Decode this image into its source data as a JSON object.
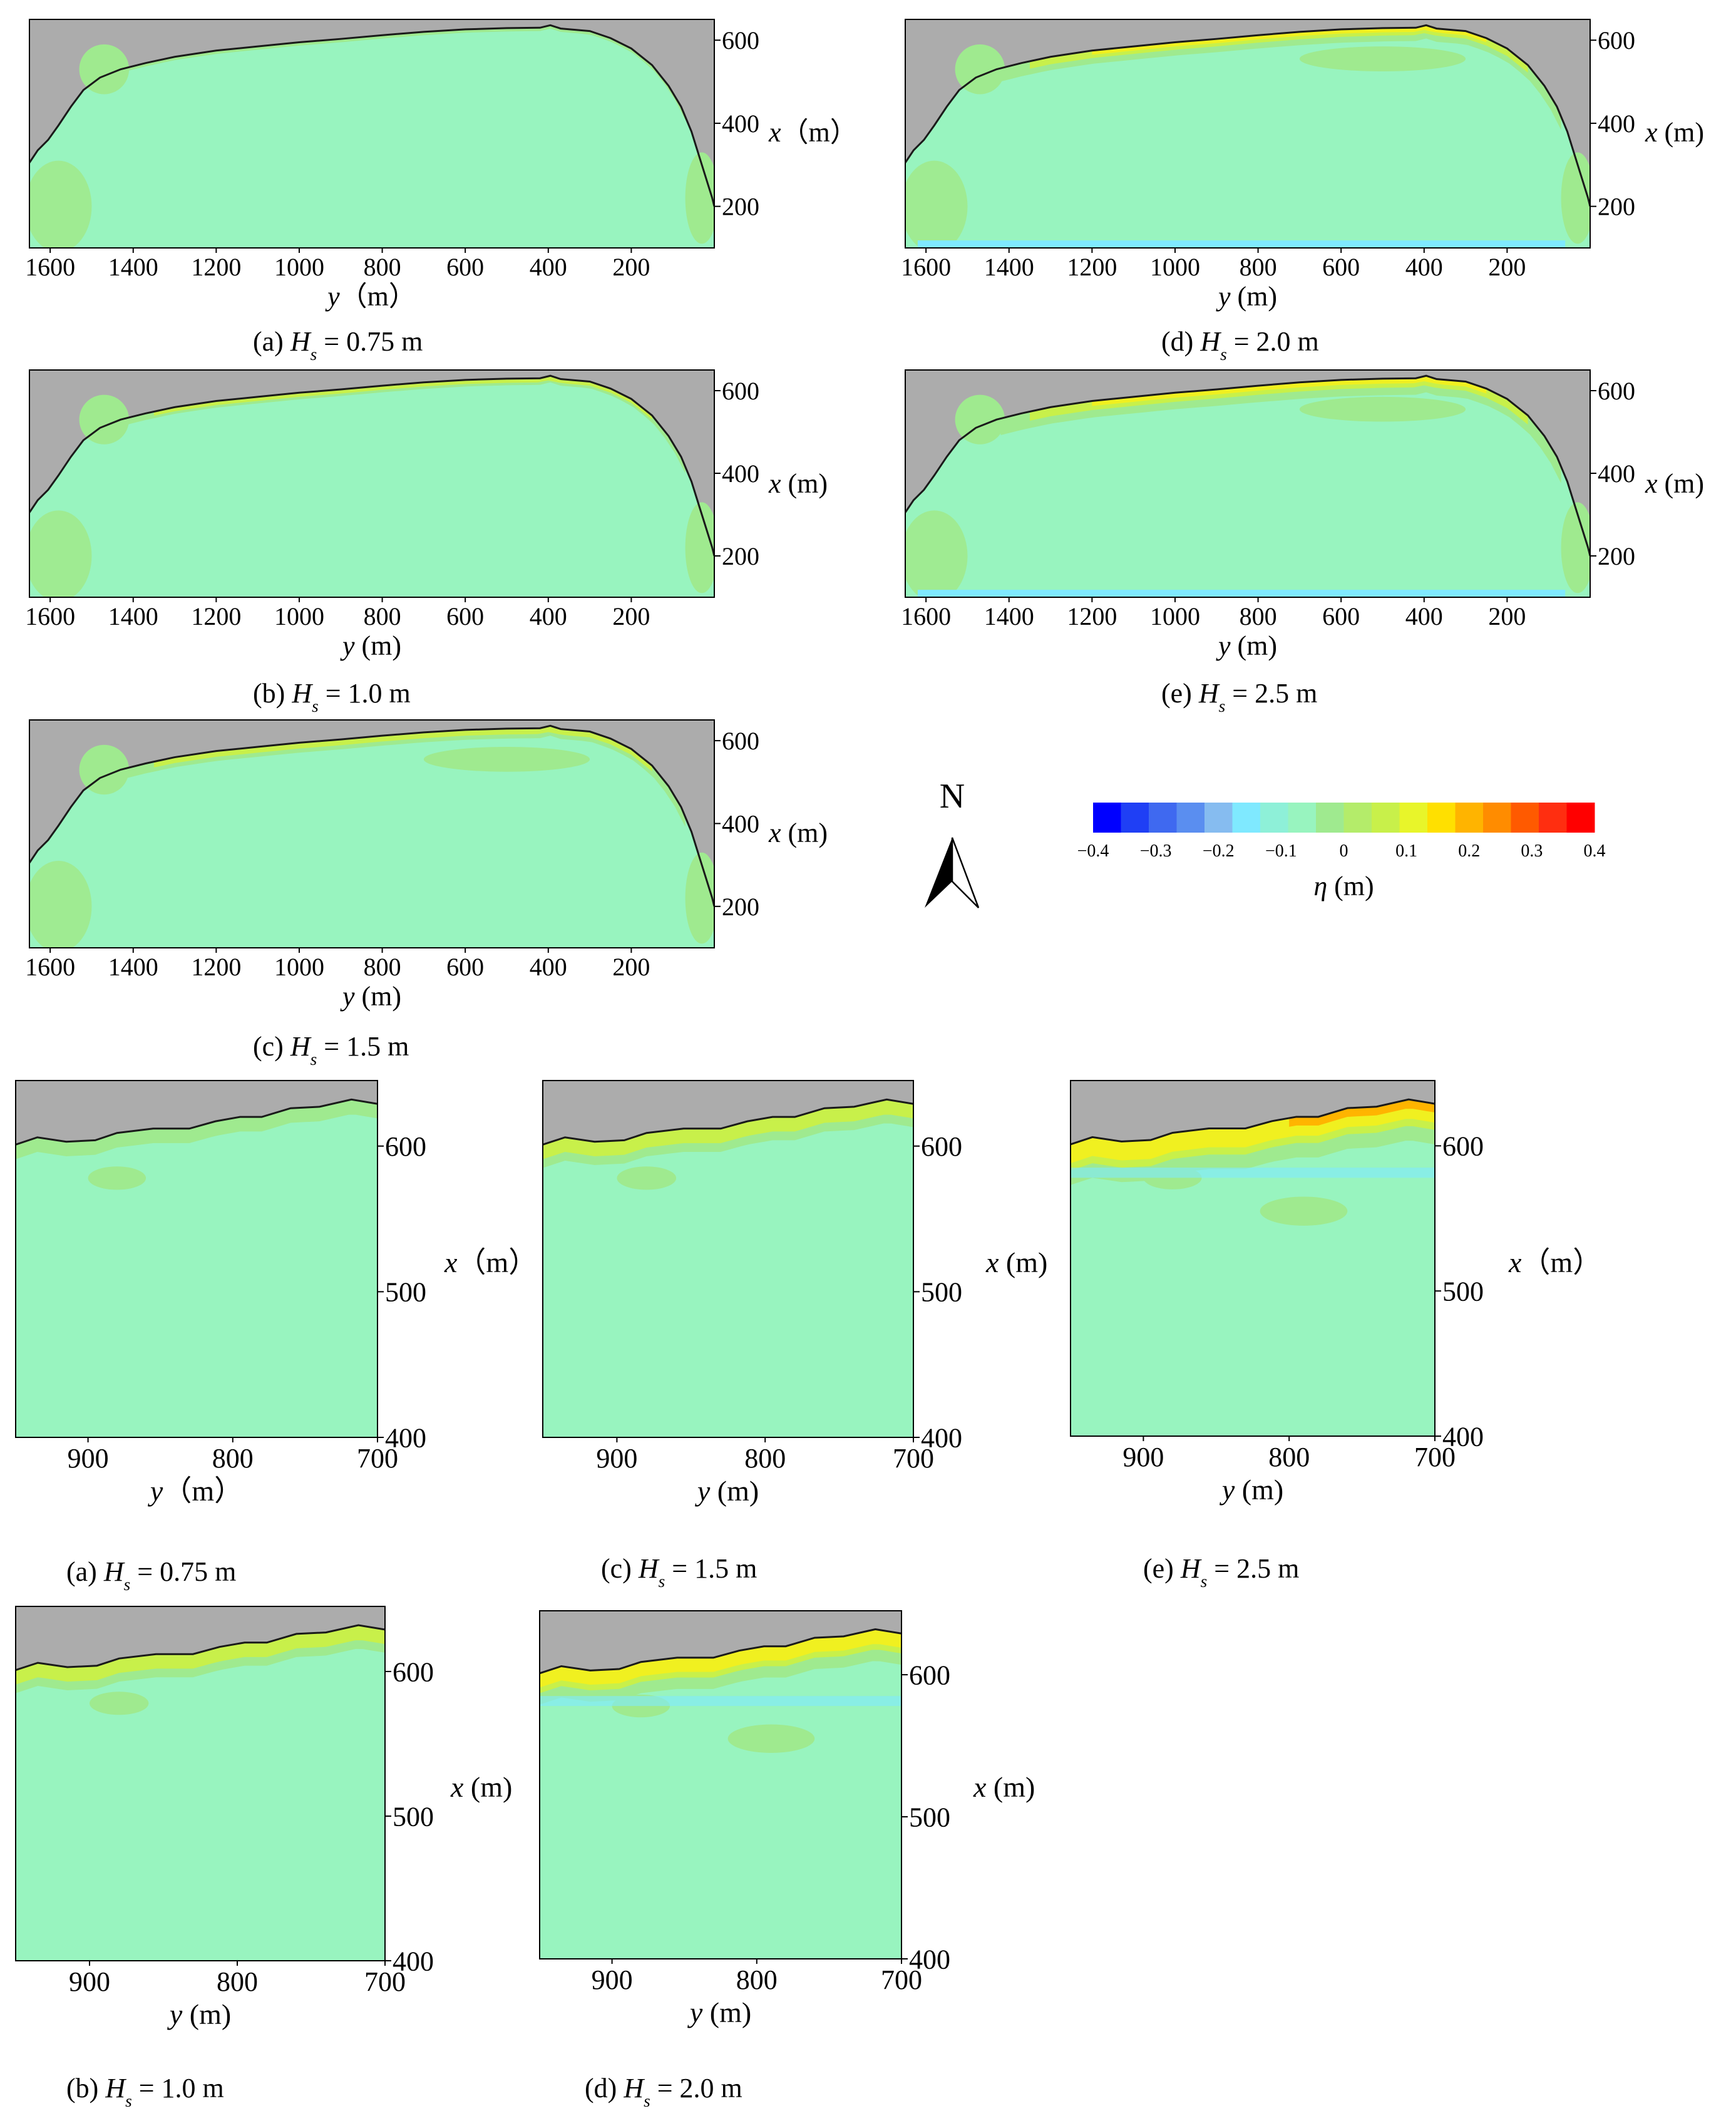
{
  "colors": {
    "land": "#acacac",
    "water": "#98f4bf",
    "shoreline": "#1a1a1a",
    "band_light_green": "#9fea8f",
    "band_yellow_green": "#c8f04a",
    "band_yellow": "#f0f020",
    "band_orange": "#ffb400",
    "band_light_blue": "#7fe9ff"
  },
  "north_arrow": {
    "label": "N"
  },
  "colorbar": {
    "label_symbol": "η",
    "label_unit": " (m)",
    "tick_labels": [
      "−0.4",
      "−0.3",
      "−0.2",
      "−0.1",
      "0",
      "0.1",
      "0.2",
      "0.3",
      "0.4"
    ],
    "colors": [
      "#0000ff",
      "#1f3ff5",
      "#3f69f0",
      "#5a8ef0",
      "#86bcf0",
      "#7fe9ff",
      "#8ef0d8",
      "#98f4bf",
      "#9fea8f",
      "#b4ec6a",
      "#c8f04a",
      "#e8f52a",
      "#ffe000",
      "#ffb400",
      "#ff8c00",
      "#ff5a00",
      "#ff2e10",
      "#ff0000"
    ],
    "range": [
      -0.4,
      0.4
    ]
  },
  "chart_data": [
    {
      "type": "heatmap",
      "caption_letter": "(a)",
      "caption_symbol": "H",
      "caption_sub": "s",
      "caption_value": " = 0.75 m",
      "xlabel": "y",
      "xlabel_unit": "（m）",
      "ylabel": "x",
      "ylabel_unit": "（m）",
      "x_ticks": [
        1600,
        1400,
        1200,
        1000,
        800,
        600,
        400,
        200
      ],
      "y_ticks": [
        200,
        400,
        600
      ],
      "xlim": [
        1650,
        0
      ],
      "ylim": [
        100,
        650
      ],
      "setup_level": "near 0 m everywhere; weak 0.05 m band along the north shore"
    },
    {
      "type": "heatmap",
      "caption_letter": "(b)",
      "caption_symbol": "H",
      "caption_sub": "s",
      "caption_value": " = 1.0 m",
      "xlabel": "y",
      "xlabel_unit": " (m)",
      "ylabel": "x",
      "ylabel_unit": " (m)",
      "x_ticks": [
        1600,
        1400,
        1200,
        1000,
        800,
        600,
        400,
        200
      ],
      "y_ticks": [
        200,
        400,
        600
      ],
      "xlim": [
        1650,
        0
      ],
      "ylim": [
        100,
        650
      ],
      "setup_level": "0.05–0.1 m along the north shore"
    },
    {
      "type": "heatmap",
      "caption_letter": "(c)",
      "caption_symbol": "H",
      "caption_sub": "s",
      "caption_value": " = 1.5 m",
      "xlabel": "y",
      "xlabel_unit": " (m)",
      "ylabel": "x",
      "ylabel_unit": " (m)",
      "x_ticks": [
        1600,
        1400,
        1200,
        1000,
        800,
        600,
        400,
        200
      ],
      "y_ticks": [
        200,
        400,
        600
      ],
      "xlim": [
        1650,
        0
      ],
      "ylim": [
        100,
        650
      ],
      "setup_level": "0.1–0.15 m along the north shore"
    },
    {
      "type": "heatmap",
      "caption_letter": "(d)",
      "caption_symbol": "H",
      "caption_sub": "s",
      "caption_value": " = 2.0 m",
      "xlabel": "y",
      "xlabel_unit": " (m)",
      "ylabel": "x",
      "ylabel_unit": " (m)",
      "x_ticks": [
        1600,
        1400,
        1200,
        1000,
        800,
        600,
        400,
        200
      ],
      "y_ticks": [
        200,
        400,
        600
      ],
      "xlim": [
        1650,
        0
      ],
      "ylim": [
        100,
        650
      ],
      "setup_level": "0.15–0.2 m along the north shore"
    },
    {
      "type": "heatmap",
      "caption_letter": "(e)",
      "caption_symbol": "H",
      "caption_sub": "s",
      "caption_value": " = 2.5 m",
      "xlabel": "y",
      "xlabel_unit": " (m)",
      "ylabel": "x",
      "ylabel_unit": " (m)",
      "x_ticks": [
        1600,
        1400,
        1200,
        1000,
        800,
        600,
        400,
        200
      ],
      "y_ticks": [
        200,
        400,
        600
      ],
      "xlim": [
        1650,
        0
      ],
      "ylim": [
        100,
        650
      ],
      "setup_level": "0.2–0.25 m along the north shore"
    },
    {
      "type": "heatmap",
      "caption_letter": "(a)",
      "caption_symbol": "H",
      "caption_sub": "s",
      "caption_value": " = 0.75 m",
      "xlabel": "y",
      "xlabel_unit": "（m）",
      "ylabel": "x",
      "ylabel_unit": "（m）",
      "x_ticks": [
        900,
        800,
        700
      ],
      "y_ticks": [
        400,
        500,
        600
      ],
      "xlim": [
        950,
        700
      ],
      "ylim": [
        400,
        645
      ],
      "setup_level": "up to 0.1 m near the shore"
    },
    {
      "type": "heatmap",
      "caption_letter": "(b)",
      "caption_symbol": "H",
      "caption_sub": "s",
      "caption_value": " = 1.0 m",
      "xlabel": "y",
      "xlabel_unit": " (m)",
      "ylabel": "x",
      "ylabel_unit": " (m)",
      "x_ticks": [
        900,
        800,
        700
      ],
      "y_ticks": [
        400,
        500,
        600
      ],
      "xlim": [
        950,
        700
      ],
      "ylim": [
        400,
        645
      ],
      "setup_level": "up to 0.1 m near the shore"
    },
    {
      "type": "heatmap",
      "caption_letter": "(c)",
      "caption_symbol": "H",
      "caption_sub": "s",
      "caption_value": " = 1.5 m",
      "xlabel": "y",
      "xlabel_unit": " (m)",
      "ylabel": "x",
      "ylabel_unit": " (m)",
      "x_ticks": [
        900,
        800,
        700
      ],
      "y_ticks": [
        400,
        500,
        600
      ],
      "xlim": [
        950,
        700
      ],
      "ylim": [
        400,
        645
      ],
      "setup_level": "up to 0.15 m near the shore"
    },
    {
      "type": "heatmap",
      "caption_letter": "(d)",
      "caption_symbol": "H",
      "caption_sub": "s",
      "caption_value": " = 2.0 m",
      "xlabel": "y",
      "xlabel_unit": " (m)",
      "ylabel": "x",
      "ylabel_unit": " (m)",
      "x_ticks": [
        900,
        800,
        700
      ],
      "y_ticks": [
        400,
        500,
        600
      ],
      "xlim": [
        950,
        700
      ],
      "ylim": [
        400,
        645
      ],
      "setup_level": "up to 0.2 m near the shore"
    },
    {
      "type": "heatmap",
      "caption_letter": "(e)",
      "caption_symbol": "H",
      "caption_sub": "s",
      "caption_value": " = 2.5 m",
      "xlabel": "y",
      "xlabel_unit": " (m)",
      "ylabel": "x",
      "ylabel_unit": "（m）",
      "x_ticks": [
        900,
        800,
        700
      ],
      "y_ticks": [
        400,
        500,
        600
      ],
      "xlim": [
        950,
        700
      ],
      "ylim": [
        400,
        645
      ],
      "setup_level": "up to 0.25 m near the shore"
    }
  ]
}
